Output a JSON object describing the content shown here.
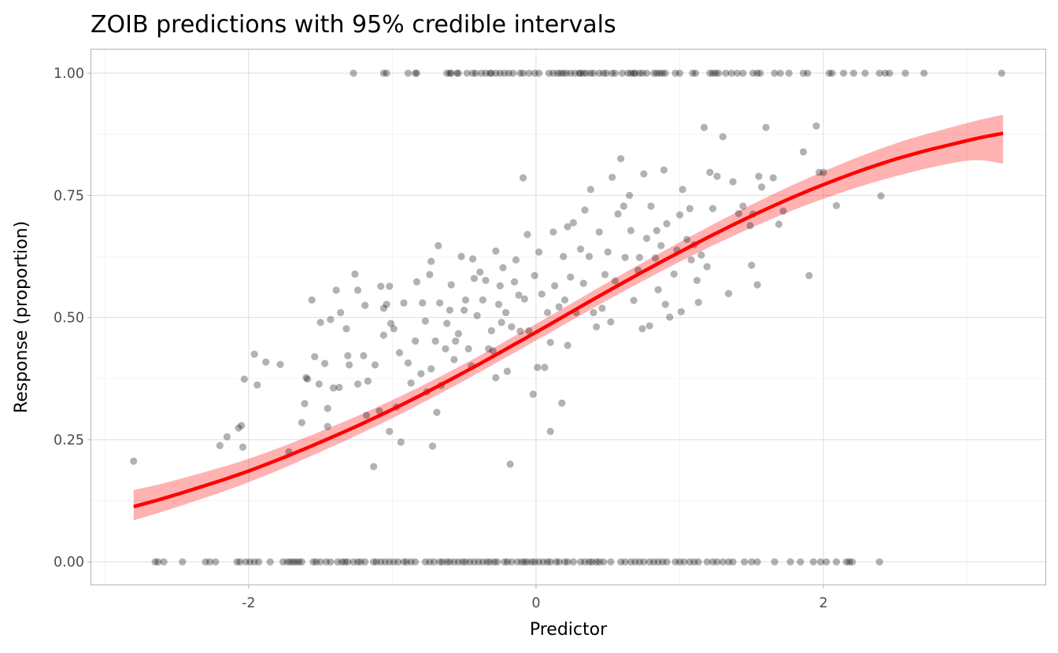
{
  "chart_data": {
    "type": "scatter",
    "title": "ZOIB predictions with 95% credible intervals",
    "xlabel": "Predictor",
    "ylabel": "Response (proportion)",
    "xlim": [
      -3.1,
      3.55
    ],
    "ylim": [
      -0.048,
      1.05
    ],
    "grid": true,
    "x_ticks": [
      -2,
      0,
      2
    ],
    "x_tick_labels": [
      "-2",
      "0",
      "2"
    ],
    "y_ticks": [
      0,
      0.25,
      0.5,
      0.75,
      1
    ],
    "y_tick_labels": [
      "0.00",
      "0.25",
      "0.50",
      "0.75",
      "1.00"
    ],
    "colors": {
      "line": "#ff0000",
      "band": "#ff0000",
      "points": "#000000"
    },
    "prediction": {
      "x": [
        -2.8,
        -2.5,
        -2.0,
        -1.5,
        -1.0,
        -0.5,
        0.0,
        0.5,
        1.0,
        1.5,
        2.0,
        2.5,
        3.0,
        3.25
      ],
      "fit": [
        0.113,
        0.138,
        0.186,
        0.245,
        0.312,
        0.388,
        0.47,
        0.554,
        0.634,
        0.708,
        0.772,
        0.824,
        0.862,
        0.877
      ],
      "lower": [
        0.085,
        0.112,
        0.163,
        0.225,
        0.294,
        0.371,
        0.453,
        0.536,
        0.614,
        0.684,
        0.743,
        0.789,
        0.821,
        0.815
      ],
      "upper": [
        0.147,
        0.168,
        0.211,
        0.267,
        0.331,
        0.405,
        0.487,
        0.572,
        0.654,
        0.731,
        0.799,
        0.856,
        0.898,
        0.915
      ]
    },
    "points_interior": [
      [
        -2.8,
        0.206
      ],
      [
        -2.2,
        0.238
      ],
      [
        -2.15,
        0.256
      ],
      [
        -2.07,
        0.274
      ],
      [
        -2.05,
        0.279
      ],
      [
        -2.04,
        0.235
      ],
      [
        -2.03,
        0.374
      ],
      [
        -1.96,
        0.425
      ],
      [
        -1.94,
        0.362
      ],
      [
        -1.88,
        0.409
      ],
      [
        -1.78,
        0.404
      ],
      [
        -1.72,
        0.225
      ],
      [
        -1.63,
        0.285
      ],
      [
        -1.61,
        0.324
      ],
      [
        -1.6,
        0.377
      ],
      [
        -1.59,
        0.374
      ],
      [
        -1.56,
        0.536
      ],
      [
        -1.54,
        0.42
      ],
      [
        -1.51,
        0.364
      ],
      [
        -1.5,
        0.49
      ],
      [
        -1.47,
        0.406
      ],
      [
        -1.45,
        0.314
      ],
      [
        -1.45,
        0.277
      ],
      [
        -1.43,
        0.496
      ],
      [
        -1.41,
        0.356
      ],
      [
        -1.39,
        0.556
      ],
      [
        -1.37,
        0.357
      ],
      [
        -1.36,
        0.51
      ],
      [
        -1.32,
        0.477
      ],
      [
        -1.31,
        0.422
      ],
      [
        -1.3,
        0.403
      ],
      [
        -1.26,
        0.589
      ],
      [
        -1.24,
        0.556
      ],
      [
        -1.24,
        0.364
      ],
      [
        -1.2,
        0.422
      ],
      [
        -1.19,
        0.525
      ],
      [
        -1.18,
        0.3
      ],
      [
        -1.17,
        0.37
      ],
      [
        -1.13,
        0.195
      ],
      [
        -1.12,
        0.403
      ],
      [
        -1.09,
        0.309
      ],
      [
        -1.08,
        0.564
      ],
      [
        -1.06,
        0.519
      ],
      [
        -1.06,
        0.464
      ],
      [
        -1.04,
        0.527
      ],
      [
        -1.02,
        0.267
      ],
      [
        -1.02,
        0.564
      ],
      [
        -1.01,
        0.488
      ],
      [
        -0.99,
        0.477
      ],
      [
        -0.97,
        0.317
      ],
      [
        -0.95,
        0.428
      ],
      [
        -0.94,
        0.245
      ],
      [
        -0.92,
        0.53
      ],
      [
        -0.89,
        0.407
      ],
      [
        -0.87,
        0.366
      ],
      [
        -0.84,
        0.452
      ],
      [
        -0.83,
        0.573
      ],
      [
        -0.8,
        0.385
      ],
      [
        -0.79,
        0.53
      ],
      [
        -0.77,
        0.493
      ],
      [
        -0.76,
        0.348
      ],
      [
        -0.74,
        0.588
      ],
      [
        -0.73,
        0.615
      ],
      [
        -0.73,
        0.395
      ],
      [
        -0.72,
        0.237
      ],
      [
        -0.7,
        0.452
      ],
      [
        -0.69,
        0.306
      ],
      [
        -0.68,
        0.647
      ],
      [
        -0.67,
        0.53
      ],
      [
        -0.66,
        0.361
      ],
      [
        -0.63,
        0.436
      ],
      [
        -0.62,
        0.488
      ],
      [
        -0.6,
        0.515
      ],
      [
        -0.59,
        0.567
      ],
      [
        -0.57,
        0.414
      ],
      [
        -0.56,
        0.452
      ],
      [
        -0.54,
        0.467
      ],
      [
        -0.52,
        0.625
      ],
      [
        -0.5,
        0.515
      ],
      [
        -0.49,
        0.536
      ],
      [
        -0.47,
        0.436
      ],
      [
        -0.45,
        0.401
      ],
      [
        -0.44,
        0.62
      ],
      [
        -0.43,
        0.58
      ],
      [
        -0.41,
        0.504
      ],
      [
        -0.39,
        0.593
      ],
      [
        -0.37,
        0.536
      ],
      [
        -0.35,
        0.576
      ],
      [
        -0.33,
        0.436
      ],
      [
        -0.31,
        0.473
      ],
      [
        -0.3,
        0.432
      ],
      [
        -0.28,
        0.636
      ],
      [
        -0.28,
        0.377
      ],
      [
        -0.26,
        0.527
      ],
      [
        -0.25,
        0.565
      ],
      [
        -0.24,
        0.49
      ],
      [
        -0.23,
        0.602
      ],
      [
        -0.21,
        0.51
      ],
      [
        -0.2,
        0.39
      ],
      [
        -0.18,
        0.2
      ],
      [
        -0.17,
        0.481
      ],
      [
        -0.15,
        0.573
      ],
      [
        -0.14,
        0.618
      ],
      [
        -0.12,
        0.546
      ],
      [
        -0.11,
        0.472
      ],
      [
        -0.09,
        0.786
      ],
      [
        -0.08,
        0.538
      ],
      [
        -0.06,
        0.67
      ],
      [
        -0.05,
        0.473
      ],
      [
        -0.02,
        0.343
      ],
      [
        -0.01,
        0.586
      ],
      [
        0.01,
        0.398
      ],
      [
        0.02,
        0.634
      ],
      [
        0.04,
        0.548
      ],
      [
        0.06,
        0.398
      ],
      [
        0.08,
        0.51
      ],
      [
        0.1,
        0.267
      ],
      [
        0.1,
        0.449
      ],
      [
        0.12,
        0.675
      ],
      [
        0.13,
        0.565
      ],
      [
        0.16,
        0.522
      ],
      [
        0.18,
        0.325
      ],
      [
        0.19,
        0.625
      ],
      [
        0.2,
        0.536
      ],
      [
        0.22,
        0.686
      ],
      [
        0.22,
        0.443
      ],
      [
        0.24,
        0.583
      ],
      [
        0.26,
        0.694
      ],
      [
        0.28,
        0.51
      ],
      [
        0.31,
        0.64
      ],
      [
        0.33,
        0.57
      ],
      [
        0.34,
        0.72
      ],
      [
        0.37,
        0.625
      ],
      [
        0.38,
        0.762
      ],
      [
        0.4,
        0.51
      ],
      [
        0.42,
        0.481
      ],
      [
        0.44,
        0.675
      ],
      [
        0.46,
        0.519
      ],
      [
        0.48,
        0.588
      ],
      [
        0.5,
        0.634
      ],
      [
        0.52,
        0.491
      ],
      [
        0.53,
        0.787
      ],
      [
        0.55,
        0.575
      ],
      [
        0.57,
        0.712
      ],
      [
        0.59,
        0.825
      ],
      [
        0.61,
        0.728
      ],
      [
        0.62,
        0.623
      ],
      [
        0.65,
        0.75
      ],
      [
        0.66,
        0.678
      ],
      [
        0.68,
        0.535
      ],
      [
        0.71,
        0.597
      ],
      [
        0.72,
        0.623
      ],
      [
        0.74,
        0.477
      ],
      [
        0.75,
        0.794
      ],
      [
        0.77,
        0.662
      ],
      [
        0.79,
        0.483
      ],
      [
        0.8,
        0.728
      ],
      [
        0.83,
        0.622
      ],
      [
        0.84,
        0.678
      ],
      [
        0.85,
        0.557
      ],
      [
        0.87,
        0.647
      ],
      [
        0.89,
        0.802
      ],
      [
        0.9,
        0.527
      ],
      [
        0.91,
        0.692
      ],
      [
        0.93,
        0.501
      ],
      [
        0.96,
        0.589
      ],
      [
        0.98,
        0.638
      ],
      [
        1.0,
        0.71
      ],
      [
        1.01,
        0.512
      ],
      [
        1.02,
        0.762
      ],
      [
        1.05,
        0.66
      ],
      [
        1.07,
        0.723
      ],
      [
        1.08,
        0.618
      ],
      [
        1.1,
        0.649
      ],
      [
        1.12,
        0.576
      ],
      [
        1.13,
        0.531
      ],
      [
        1.15,
        0.628
      ],
      [
        1.17,
        0.889
      ],
      [
        1.19,
        0.604
      ],
      [
        1.21,
        0.797
      ],
      [
        1.23,
        0.723
      ],
      [
        1.26,
        0.789
      ],
      [
        1.3,
        0.87
      ],
      [
        1.34,
        0.549
      ],
      [
        1.37,
        0.778
      ],
      [
        1.41,
        0.713
      ],
      [
        1.44,
        0.728
      ],
      [
        1.49,
        0.688
      ],
      [
        1.5,
        0.607
      ],
      [
        1.51,
        0.712
      ],
      [
        1.54,
        0.567
      ],
      [
        1.55,
        0.789
      ],
      [
        1.57,
        0.767
      ],
      [
        1.6,
        0.889
      ],
      [
        1.65,
        0.786
      ],
      [
        1.69,
        0.691
      ],
      [
        1.72,
        0.718
      ],
      [
        1.86,
        0.839
      ],
      [
        1.9,
        0.586
      ],
      [
        1.95,
        0.892
      ],
      [
        1.97,
        0.797
      ],
      [
        2.0,
        0.797
      ],
      [
        2.09,
        0.729
      ],
      [
        2.4,
        0.749
      ]
    ],
    "points_at_one_x": [
      -1.27,
      -1.06,
      -1.04,
      -0.89,
      -0.84,
      -0.83,
      -0.62,
      -0.6,
      -0.59,
      -0.55,
      -0.54,
      -0.48,
      -0.44,
      -0.42,
      -0.38,
      -0.35,
      -0.32,
      -0.31,
      -0.28,
      -0.25,
      -0.22,
      -0.19,
      -0.16,
      -0.11,
      -0.09,
      -0.05,
      -0.01,
      0.02,
      0.09,
      0.12,
      0.15,
      0.17,
      0.19,
      0.21,
      0.24,
      0.27,
      0.3,
      0.31,
      0.33,
      0.35,
      0.38,
      0.4,
      0.44,
      0.47,
      0.49,
      0.53,
      0.55,
      0.6,
      0.64,
      0.66,
      0.68,
      0.69,
      0.72,
      0.74,
      0.77,
      0.82,
      0.84,
      0.86,
      0.88,
      0.9,
      0.97,
      1.0,
      1.09,
      1.11,
      1.21,
      1.23,
      1.25,
      1.27,
      1.32,
      1.36,
      1.4,
      1.44,
      1.51,
      1.54,
      1.56,
      1.66,
      1.7,
      1.76,
      1.86,
      1.89,
      2.04,
      2.06,
      2.14,
      2.21,
      2.29,
      2.39,
      2.43,
      2.46,
      2.57,
      2.7,
      3.24
    ],
    "points_at_zero_x": [
      -2.65,
      -2.63,
      -2.59,
      -2.46,
      -2.3,
      -2.27,
      -2.23,
      -2.08,
      -2.06,
      -2.02,
      -1.99,
      -1.96,
      -1.93,
      -1.85,
      -1.76,
      -1.73,
      -1.71,
      -1.69,
      -1.67,
      -1.65,
      -1.63,
      -1.55,
      -1.53,
      -1.5,
      -1.46,
      -1.43,
      -1.38,
      -1.35,
      -1.33,
      -1.31,
      -1.27,
      -1.24,
      -1.22,
      -1.19,
      -1.13,
      -1.11,
      -1.08,
      -1.05,
      -1.02,
      -0.99,
      -0.96,
      -0.92,
      -0.9,
      -0.87,
      -0.84,
      -0.77,
      -0.74,
      -0.71,
      -0.67,
      -0.65,
      -0.62,
      -0.6,
      -0.57,
      -0.54,
      -0.51,
      -0.49,
      -0.46,
      -0.43,
      -0.4,
      -0.37,
      -0.34,
      -0.32,
      -0.29,
      -0.27,
      -0.22,
      -0.2,
      -0.17,
      -0.13,
      -0.1,
      -0.08,
      -0.06,
      -0.03,
      -0.01,
      0.02,
      0.05,
      0.08,
      0.1,
      0.14,
      0.16,
      0.2,
      0.22,
      0.26,
      0.31,
      0.34,
      0.37,
      0.39,
      0.42,
      0.44,
      0.47,
      0.52,
      0.59,
      0.62,
      0.66,
      0.69,
      0.72,
      0.75,
      0.79,
      0.82,
      0.85,
      0.88,
      0.91,
      0.97,
      1.0,
      1.03,
      1.07,
      1.1,
      1.13,
      1.19,
      1.23,
      1.26,
      1.3,
      1.34,
      1.37,
      1.45,
      1.5,
      1.54,
      1.66,
      1.77,
      1.84,
      1.93,
      1.98,
      2.02,
      2.09,
      2.16,
      2.18,
      2.2,
      2.39
    ]
  }
}
